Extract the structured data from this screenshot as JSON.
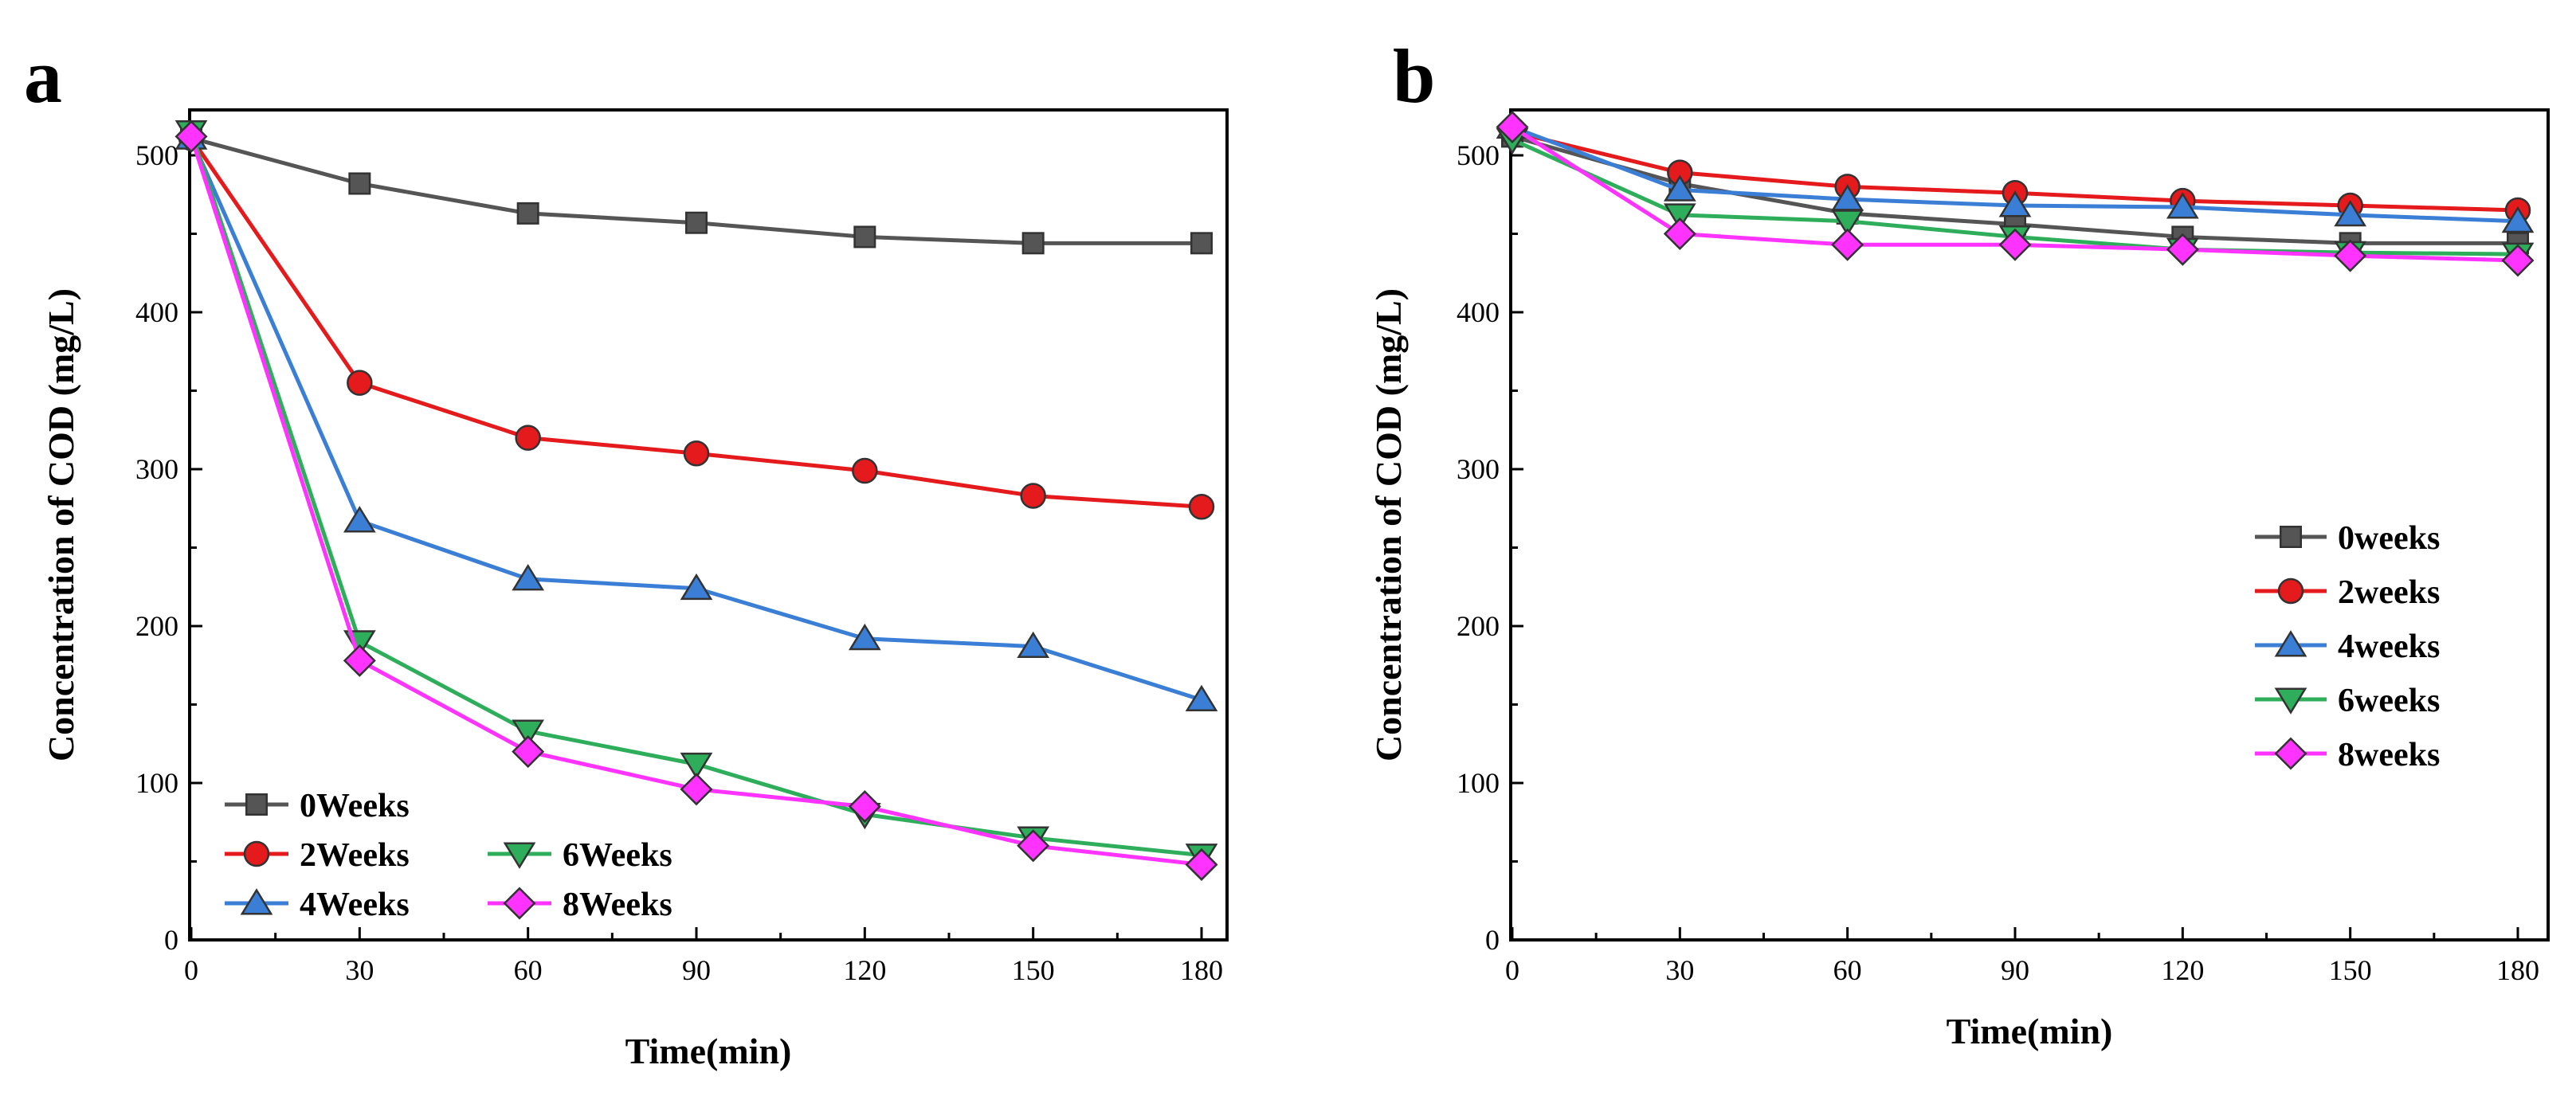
{
  "chart_data": [
    {
      "id": "a",
      "panel_label": "a",
      "type": "line",
      "xlabel": "Time(min)",
      "ylabel": "Concentration of COD (mg/L)",
      "xlim": [
        0,
        180
      ],
      "ylim": [
        0,
        530
      ],
      "xticks": [
        0,
        30,
        60,
        90,
        120,
        150,
        180
      ],
      "yticks": [
        0,
        100,
        200,
        300,
        400,
        500
      ],
      "grid": false,
      "legend_position": "bottom-left",
      "x": [
        0,
        30,
        60,
        90,
        120,
        150,
        180
      ],
      "series": [
        {
          "name": "0Weeks",
          "marker": "square",
          "color": "#555555",
          "values": [
            511,
            482,
            463,
            457,
            448,
            444,
            444
          ]
        },
        {
          "name": "2Weeks",
          "marker": "circle",
          "color": "#e41a1c",
          "values": [
            511,
            355,
            320,
            310,
            299,
            283,
            276
          ]
        },
        {
          "name": "4Weeks",
          "marker": "triangle-up",
          "color": "#3a7fd5",
          "values": [
            511,
            267,
            230,
            224,
            192,
            187,
            153
          ]
        },
        {
          "name": "6Weeks",
          "marker": "triangle-down",
          "color": "#2eae5a",
          "values": [
            515,
            190,
            133,
            112,
            80,
            65,
            54
          ]
        },
        {
          "name": "8Weeks",
          "marker": "diamond",
          "color": "#ff33ff",
          "values": [
            512,
            178,
            120,
            96,
            85,
            60,
            48
          ]
        }
      ]
    },
    {
      "id": "b",
      "panel_label": "b",
      "type": "line",
      "xlabel": "Time(min)",
      "ylabel": "Concentration of COD (mg/L)",
      "xlim": [
        0,
        180
      ],
      "ylim": [
        0,
        530
      ],
      "xticks": [
        0,
        30,
        60,
        90,
        120,
        150,
        180
      ],
      "yticks": [
        0,
        100,
        200,
        300,
        400,
        500
      ],
      "grid": false,
      "legend_position": "right",
      "x": [
        0,
        30,
        60,
        90,
        120,
        150,
        180
      ],
      "series": [
        {
          "name": "0weeks",
          "marker": "square",
          "color": "#555555",
          "values": [
            512,
            482,
            463,
            456,
            448,
            444,
            444
          ]
        },
        {
          "name": "2weeks",
          "marker": "circle",
          "color": "#e41a1c",
          "values": [
            515,
            489,
            480,
            476,
            471,
            468,
            465
          ]
        },
        {
          "name": "4weeks",
          "marker": "triangle-up",
          "color": "#3a7fd5",
          "values": [
            518,
            478,
            472,
            468,
            467,
            462,
            458
          ]
        },
        {
          "name": "6weeks",
          "marker": "triangle-down",
          "color": "#2eae5a",
          "values": [
            510,
            462,
            458,
            448,
            440,
            438,
            437
          ]
        },
        {
          "name": "8weeks",
          "marker": "diamond",
          "color": "#ff33ff",
          "values": [
            518,
            450,
            443,
            443,
            440,
            436,
            433
          ]
        }
      ]
    }
  ]
}
